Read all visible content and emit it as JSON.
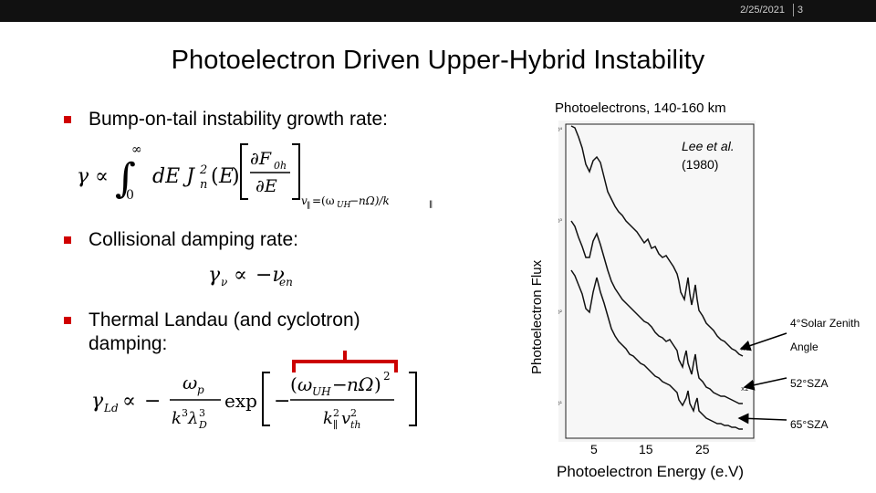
{
  "header": {
    "date": "2/25/2021",
    "slide_number": "3"
  },
  "title": "Photoelectron Driven Upper-Hybrid Instability",
  "bullets": [
    {
      "text": "Bump-on-tail instability growth rate:"
    },
    {
      "text": "Collisional damping rate:"
    },
    {
      "text_line1": "Thermal Landau (and cyclotron)",
      "text_line2": "damping:"
    }
  ],
  "figure": {
    "caption": "Photoelectrons, 140-160 km",
    "y_axis_label": "Photoelectron Flux",
    "x_axis_label": "Photoelectron Energy (e.V)",
    "x_ticks": [
      "5",
      "15",
      "25"
    ],
    "reference_author": "Lee et al.",
    "reference_year": "(1980)",
    "annotation_1_line1": "4°Solar Zenith",
    "annotation_1_line2": "Angle",
    "annotation_2": "52°SZA",
    "annotation_3": "65°SZA",
    "curve_tags": [
      "x4",
      "x2"
    ]
  },
  "colors": {
    "bullet": "#d00000",
    "bracket": "#cc0000",
    "header_bg": "#111111"
  }
}
